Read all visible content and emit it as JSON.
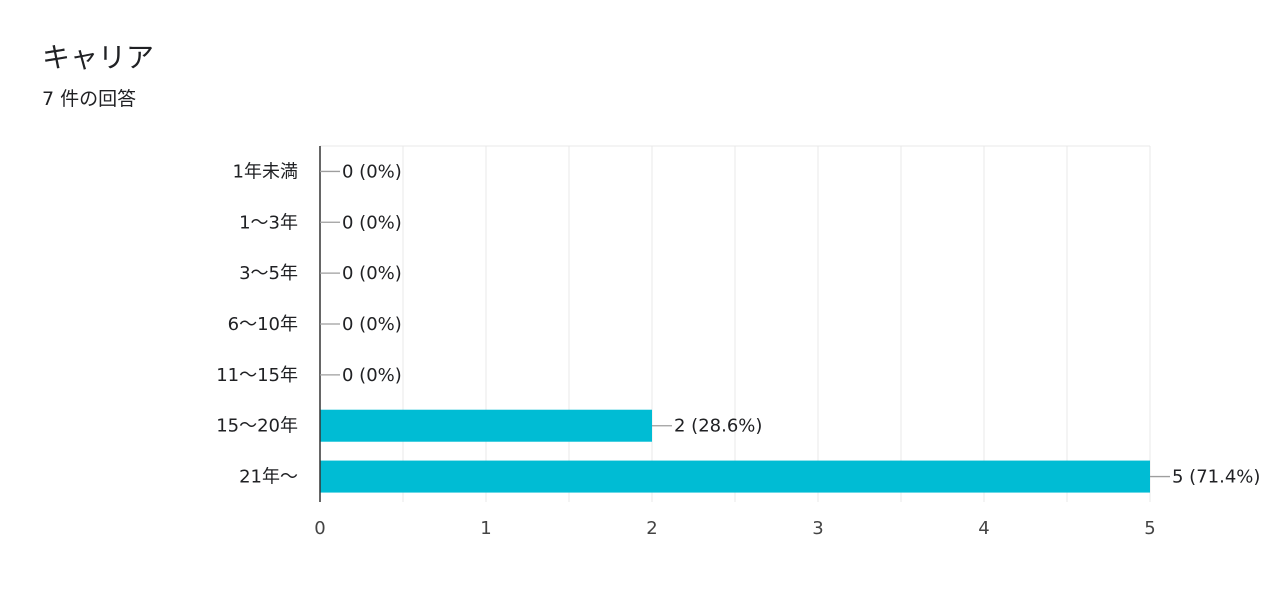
{
  "header": {
    "title": "キャリア",
    "response_count": "7 件の回答"
  },
  "colors": {
    "bar": "#00bcd4",
    "grid": "#e8e8e8",
    "axis": "#333333",
    "text": "#202124",
    "leader": "#9e9e9e"
  },
  "chart_data": {
    "type": "bar",
    "orientation": "horizontal",
    "title": "キャリア",
    "subtitle": "7 件の回答",
    "categories": [
      "1年未満",
      "1〜3年",
      "3〜5年",
      "6〜10年",
      "11〜15年",
      "15〜20年",
      "21年〜"
    ],
    "values": [
      0,
      0,
      0,
      0,
      0,
      2,
      5
    ],
    "data_labels": [
      "0 (0%)",
      "0 (0%)",
      "0 (0%)",
      "0 (0%)",
      "0 (0%)",
      "2 (28.6%)",
      "5 (71.4%)"
    ],
    "xlim": [
      0,
      5
    ],
    "xticks": [
      "0",
      "1",
      "2",
      "3",
      "4",
      "5"
    ],
    "xlabel": "",
    "ylabel": "",
    "grid": true
  }
}
